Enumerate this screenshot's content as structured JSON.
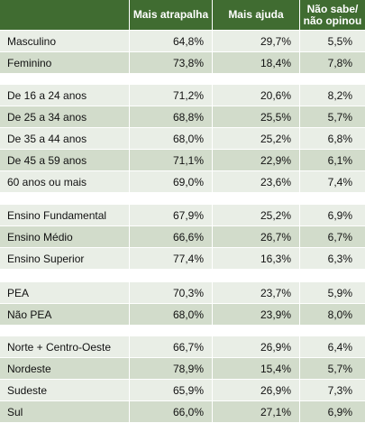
{
  "header": {
    "col0": "",
    "col1": "Mais atrapalha",
    "col2": "Mais ajuda",
    "col3_line1": "Não sabe/",
    "col3_line2": "não opinou"
  },
  "rows": [
    {
      "label": "Masculino",
      "atrapalha": "64,8%",
      "ajuda": "29,7%",
      "nao_sabe": "5,5%"
    },
    {
      "label": "Feminino",
      "atrapalha": "73,8%",
      "ajuda": "18,4%",
      "nao_sabe": "7,8%"
    },
    {
      "label": "De 16 a 24 anos",
      "atrapalha": "71,2%",
      "ajuda": "20,6%",
      "nao_sabe": "8,2%"
    },
    {
      "label": "De 25 a 34 anos",
      "atrapalha": "68,8%",
      "ajuda": "25,5%",
      "nao_sabe": "5,7%"
    },
    {
      "label": "De 35 a 44 anos",
      "atrapalha": "68,0%",
      "ajuda": "25,2%",
      "nao_sabe": "6,8%"
    },
    {
      "label": "De 45 a 59 anos",
      "atrapalha": "71,1%",
      "ajuda": "22,9%",
      "nao_sabe": "6,1%"
    },
    {
      "label": "60 anos ou mais",
      "atrapalha": "69,0%",
      "ajuda": "23,6%",
      "nao_sabe": "7,4%"
    },
    {
      "label": "Ensino Fundamental",
      "atrapalha": "67,9%",
      "ajuda": "25,2%",
      "nao_sabe": "6,9%"
    },
    {
      "label": "Ensino Médio",
      "atrapalha": "66,6%",
      "ajuda": "26,7%",
      "nao_sabe": "6,7%"
    },
    {
      "label": "Ensino Superior",
      "atrapalha": "77,4%",
      "ajuda": "16,3%",
      "nao_sabe": "6,3%"
    },
    {
      "label": " PEA",
      "atrapalha": "70,3%",
      "ajuda": "23,7%",
      "nao_sabe": "5,9%"
    },
    {
      "label": " Não PEA",
      "atrapalha": "68,0%",
      "ajuda": "23,9%",
      "nao_sabe": "8,0%"
    },
    {
      "label": "Norte + Centro-Oeste",
      "atrapalha": "66,7%",
      "ajuda": "26,9%",
      "nao_sabe": "6,4%"
    },
    {
      "label": "Nordeste",
      "atrapalha": "78,9%",
      "ajuda": "15,4%",
      "nao_sabe": "5,7%"
    },
    {
      "label": "Sudeste",
      "atrapalha": "65,9%",
      "ajuda": "26,9%",
      "nao_sabe": "7,3%"
    },
    {
      "label": "Sul",
      "atrapalha": "66,0%",
      "ajuda": "27,1%",
      "nao_sabe": "6,9%"
    }
  ],
  "colors": {
    "header_bg": "#406c31",
    "row_light": "#e9eee6",
    "row_dark": "#d2dccb"
  }
}
